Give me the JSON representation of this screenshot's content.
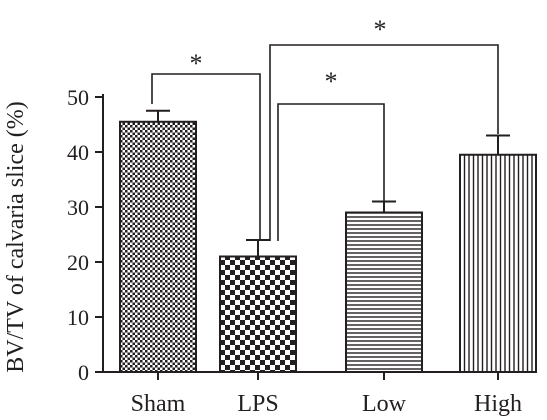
{
  "chart_data": {
    "type": "bar",
    "title": "",
    "xlabel": "",
    "ylabel": "BV/TV of calvaria slice (%)",
    "ylim": [
      0,
      50
    ],
    "yticks": [
      0,
      10,
      20,
      30,
      40,
      50
    ],
    "yticklabels": [
      "0",
      "10",
      "20",
      "30",
      "40",
      "50"
    ],
    "categories": [
      "Sham",
      "LPS",
      "Low",
      "High"
    ],
    "values": [
      45.5,
      21,
      29,
      39.5
    ],
    "errors": [
      2,
      3,
      2,
      3.5
    ],
    "patterns": [
      "checker-fine",
      "checker-coarse",
      "horizontal-lines",
      "vertical-lines"
    ],
    "significance": [
      {
        "from": "Sham",
        "to": "LPS",
        "label": "*"
      },
      {
        "from": "LPS",
        "to": "Low",
        "label": "*"
      },
      {
        "from": "LPS",
        "to": "High",
        "label": "*"
      }
    ],
    "grid": false,
    "legend": "none",
    "colors": {
      "ink": "#231f20",
      "background": "#ffffff"
    }
  }
}
